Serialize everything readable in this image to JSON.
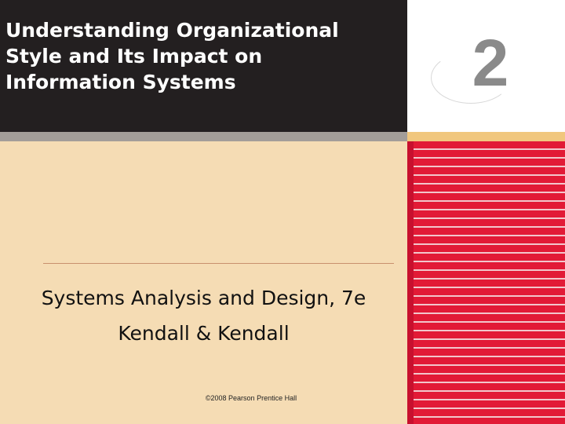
{
  "title": {
    "line1": "Understanding Organizational",
    "line2": "Style and Its Impact on",
    "line3": "Information Systems"
  },
  "chapter": {
    "number": "2"
  },
  "subtitle": {
    "line1": "Systems Analysis and Design, 7e",
    "line2": "Kendall & Kendall"
  },
  "copyright": "©2008 Pearson Prentice Hall",
  "colors": {
    "title_bg": "#231f20",
    "body_bg": "#f5dcb4",
    "stripe_red": "#e21a36",
    "gold_band": "#f1c77e",
    "chapter_grey": "#8a8a8a"
  }
}
